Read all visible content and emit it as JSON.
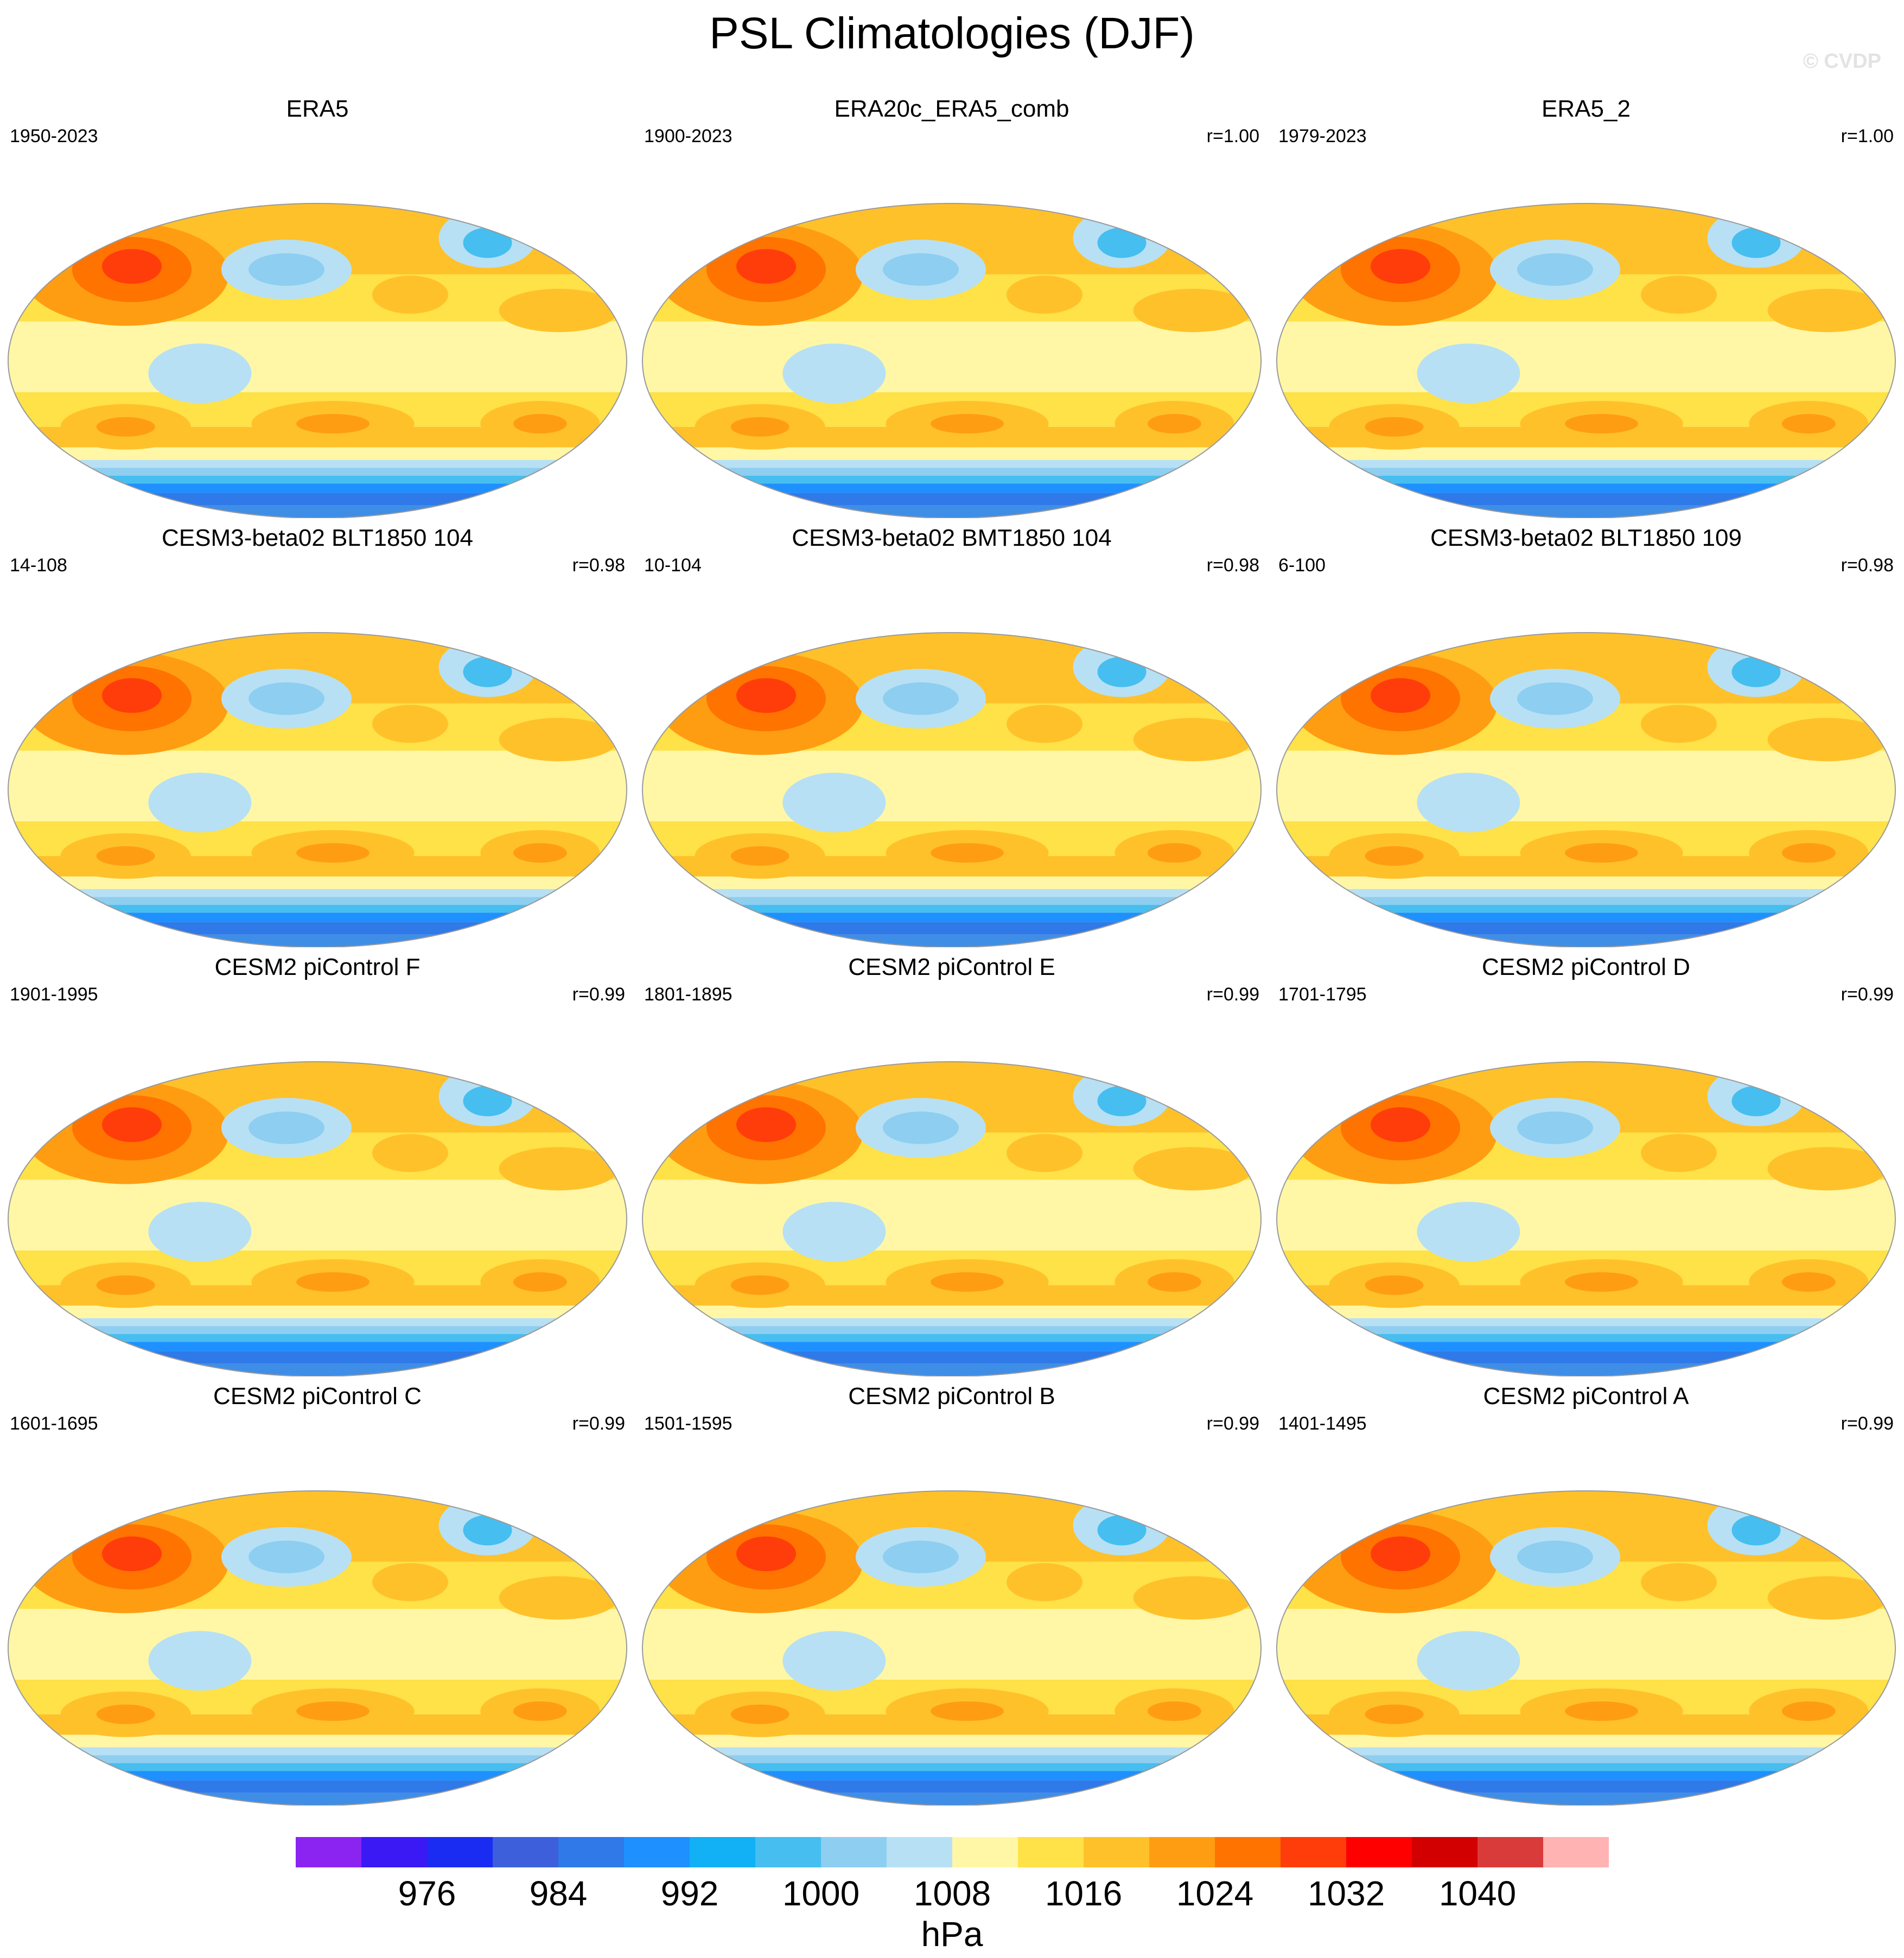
{
  "title": "PSL Climatologies (DJF)",
  "watermark": "© CVDP",
  "units": "hPa",
  "colorbar": {
    "colors": [
      "#8b24f0",
      "#3b19f5",
      "#1a2cf2",
      "#3e5fdc",
      "#2f79e8",
      "#1e90ff",
      "#12b0f5",
      "#46bef0",
      "#8ecef0",
      "#b7e0f5",
      "#fff7a6",
      "#ffe148",
      "#ffc12a",
      "#ff9d12",
      "#ff7300",
      "#ff3d0a",
      "#ff0000",
      "#d20000",
      "#d93a3a",
      "#ffb3b3"
    ],
    "tick_labels": [
      "976",
      "984",
      "992",
      "1000",
      "1008",
      "1016",
      "1024",
      "1032",
      "1040"
    ]
  },
  "panels": [
    {
      "title": "ERA5",
      "years": "1950-2023",
      "r": ""
    },
    {
      "title": "ERA20c_ERA5_comb",
      "years": "1900-2023",
      "r": "r=1.00"
    },
    {
      "title": "ERA5_2",
      "years": "1979-2023",
      "r": "r=1.00"
    },
    {
      "title": "CESM3-beta02 BLT1850 104",
      "years": "14-108",
      "r": "r=0.98"
    },
    {
      "title": "CESM3-beta02 BMT1850 104",
      "years": "10-104",
      "r": "r=0.98"
    },
    {
      "title": "CESM3-beta02 BLT1850 109",
      "years": "6-100",
      "r": "r=0.98"
    },
    {
      "title": "CESM2 piControl F",
      "years": "1901-1995",
      "r": "r=0.99"
    },
    {
      "title": "CESM2 piControl E",
      "years": "1801-1895",
      "r": "r=0.99"
    },
    {
      "title": "CESM2 piControl D",
      "years": "1701-1795",
      "r": "r=0.99"
    },
    {
      "title": "CESM2 piControl C",
      "years": "1601-1695",
      "r": "r=0.99"
    },
    {
      "title": "CESM2 piControl B",
      "years": "1501-1595",
      "r": "r=0.99"
    },
    {
      "title": "CESM2 piControl A",
      "years": "1401-1495",
      "r": "r=0.99"
    }
  ]
}
